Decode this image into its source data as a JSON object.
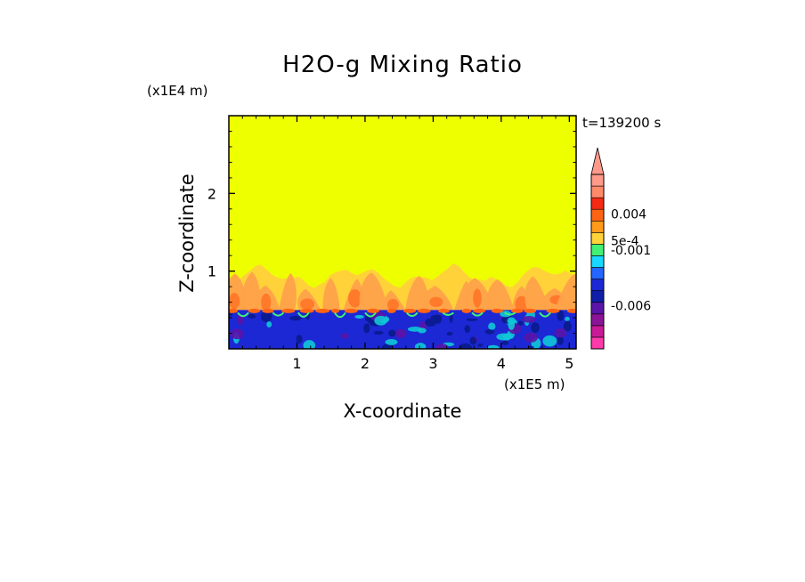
{
  "chart_data": {
    "type": "heatmap",
    "title": "H2O-g Mixing Ratio",
    "xlabel": "X-coordinate",
    "ylabel": "Z-coordinate",
    "x_unit": "(x1E5 m)",
    "z_unit": "(x1E4 m)",
    "time_label": "t=139200 s",
    "x_ticks": [
      "1",
      "2",
      "3",
      "4",
      "5"
    ],
    "z_ticks": [
      "1",
      "2"
    ],
    "xlim": [
      0,
      5.1
    ],
    "ylim": [
      0,
      3
    ],
    "background_value_color": "#eeff00",
    "layers": [
      {
        "name": "upper-moist-band",
        "z_range": [
          0.5,
          1.0
        ],
        "dominant_colors": [
          "#ffd23a",
          "#ffa24a",
          "#ff7a2a"
        ]
      },
      {
        "name": "lower-dry-layer",
        "z_range": [
          0.0,
          0.5
        ],
        "dominant_colors": [
          "#1c28d4",
          "#0a1a8c",
          "#10c6d6",
          "#5a14a8"
        ]
      }
    ],
    "colorbar": {
      "colors": [
        "#ff3aaa",
        "#c81a96",
        "#8b1496",
        "#5a14a8",
        "#101ea8",
        "#1c28d4",
        "#2466ff",
        "#18d8ff",
        "#42f076",
        "#ffd23a",
        "#ff9a1a",
        "#ff6414",
        "#f42a14",
        "#ff8a6a",
        "#ff9a8a"
      ],
      "labels": [
        "0.004",
        "5e-4",
        "-0.001",
        "-0.006"
      ],
      "extend": "max"
    }
  }
}
